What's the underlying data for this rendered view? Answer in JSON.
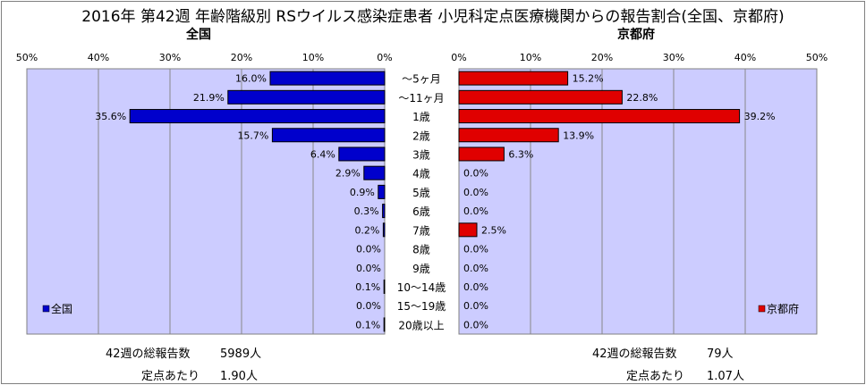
{
  "title": "2016年 第42週 年齢階級別 RSウイルス感染症患者 小児科定点医療機関からの報告割合(全国、京都府)",
  "chart_data": [
    {
      "type": "bar",
      "orientation": "horizontal",
      "direction": "right-to-left",
      "subtitle": "全国",
      "series": [
        {
          "name": "全国",
          "values": [
            16.0,
            21.9,
            35.6,
            15.7,
            6.4,
            2.9,
            0.9,
            0.3,
            0.2,
            0.0,
            0.0,
            0.1,
            0.0,
            0.1
          ]
        }
      ],
      "value_labels": [
        "16.0%",
        "21.9%",
        "35.6%",
        "15.7%",
        "6.4%",
        "2.9%",
        "0.9%",
        "0.3%",
        "0.2%",
        "0.0%",
        "0.0%",
        "0.1%",
        "0.0%",
        "0.1%"
      ],
      "xlim": [
        0,
        50
      ],
      "ticks": [
        "50%",
        "40%",
        "30%",
        "20%",
        "10%",
        "0%"
      ],
      "grid": true,
      "legend_placement": "bottom-left",
      "color": "#0000cc"
    },
    {
      "type": "bar",
      "orientation": "horizontal",
      "direction": "left-to-right",
      "subtitle": "京都府",
      "series": [
        {
          "name": "京都府",
          "values": [
            15.2,
            22.8,
            39.2,
            13.9,
            6.3,
            0.0,
            0.0,
            0.0,
            2.5,
            0.0,
            0.0,
            0.0,
            0.0,
            0.0
          ]
        }
      ],
      "value_labels": [
        "15.2%",
        "22.8%",
        "39.2%",
        "13.9%",
        "6.3%",
        "0.0%",
        "0.0%",
        "0.0%",
        "2.5%",
        "0.0%",
        "0.0%",
        "0.0%",
        "0.0%",
        "0.0%"
      ],
      "xlim": [
        0,
        50
      ],
      "ticks": [
        "0%",
        "10%",
        "20%",
        "30%",
        "40%",
        "50%"
      ],
      "grid": true,
      "legend_placement": "bottom-right",
      "color": "#e00000"
    }
  ],
  "categories": [
    "～5ヶ月",
    "～11ヶ月",
    "1歳",
    "2歳",
    "3歳",
    "4歳",
    "5歳",
    "6歳",
    "7歳",
    "8歳",
    "9歳",
    "10～14歳",
    "15～19歳",
    "20歳以上"
  ],
  "plot_bg": "#ccccff",
  "footer": {
    "national_total_label": "42週の総報告数",
    "national_total_value": "5989人",
    "national_per_label": "定点あたり",
    "national_per_value": "1.90人",
    "kyoto_total_label": "42週の総報告数",
    "kyoto_total_value": "79人",
    "kyoto_per_label": "定点あたり",
    "kyoto_per_value": "1.07人"
  }
}
